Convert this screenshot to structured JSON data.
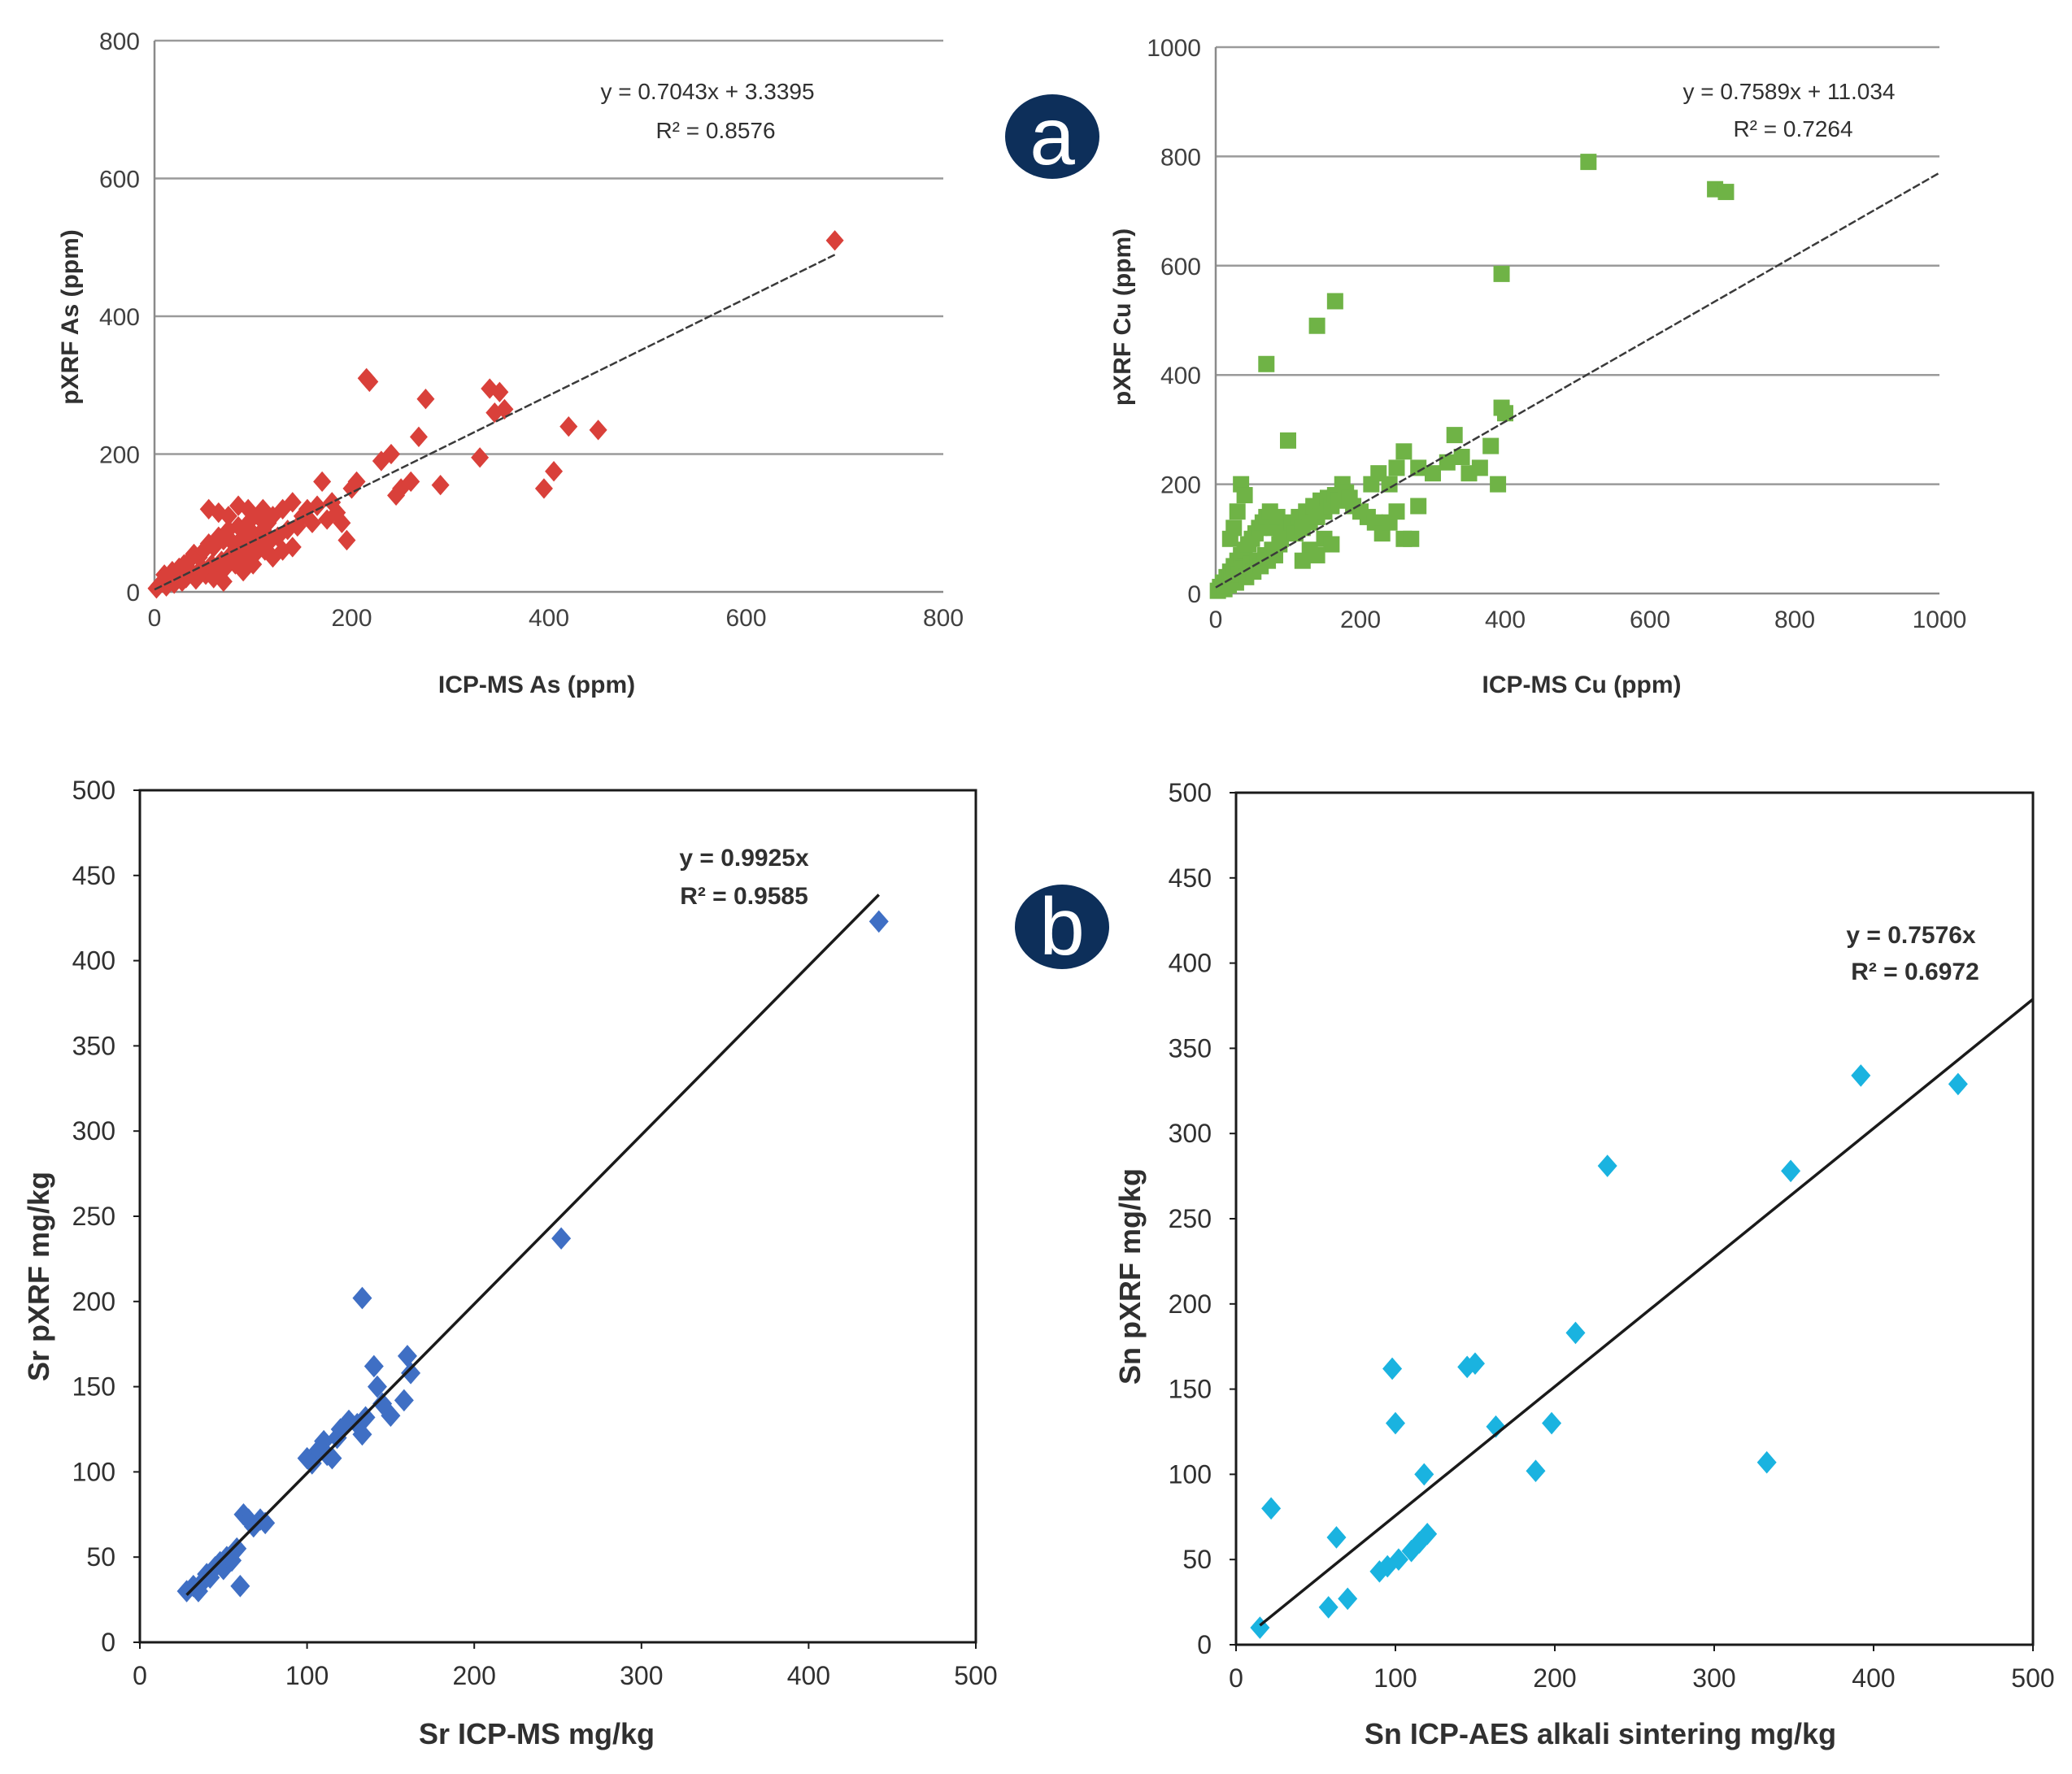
{
  "figure": {
    "badges": {
      "a": "a",
      "b": "b"
    },
    "badge_color": "#0d2f5a"
  },
  "chart_data": [
    {
      "id": "as",
      "type": "scatter",
      "title": "",
      "xlabel": "ICP-MS As (ppm)",
      "ylabel": "pXRF As (ppm)",
      "xlim": [
        0,
        800
      ],
      "ylim": [
        0,
        800
      ],
      "xticks": [
        "0",
        "200",
        "400",
        "600",
        "800"
      ],
      "yticks": [
        "0",
        "200",
        "400",
        "600",
        "800"
      ],
      "grid": true,
      "marker": "diamond",
      "color": "#d9403a",
      "equation": "y = 0.7043x + 3.3395",
      "r2": "R² = 0.8576",
      "fit": {
        "slope": 0.7043,
        "intercept": 3.3395,
        "x0": 0,
        "x1": 690
      },
      "points": [
        [
          2,
          5
        ],
        [
          5,
          10
        ],
        [
          8,
          14
        ],
        [
          10,
          25
        ],
        [
          12,
          8
        ],
        [
          15,
          18
        ],
        [
          18,
          30
        ],
        [
          20,
          12
        ],
        [
          22,
          22
        ],
        [
          25,
          35
        ],
        [
          28,
          15
        ],
        [
          30,
          40
        ],
        [
          32,
          20
        ],
        [
          35,
          45
        ],
        [
          38,
          28
        ],
        [
          40,
          55
        ],
        [
          42,
          18
        ],
        [
          45,
          50
        ],
        [
          48,
          35
        ],
        [
          50,
          60
        ],
        [
          52,
          25
        ],
        [
          55,
          70
        ],
        [
          58,
          40
        ],
        [
          60,
          65
        ],
        [
          62,
          30
        ],
        [
          65,
          80
        ],
        [
          68,
          45
        ],
        [
          70,
          75
        ],
        [
          72,
          35
        ],
        [
          75,
          90
        ],
        [
          78,
          55
        ],
        [
          80,
          70
        ],
        [
          82,
          40
        ],
        [
          85,
          95
        ],
        [
          88,
          60
        ],
        [
          90,
          80
        ],
        [
          92,
          50
        ],
        [
          95,
          100
        ],
        [
          98,
          65
        ],
        [
          100,
          85
        ],
        [
          102,
          55
        ],
        [
          105,
          110
        ],
        [
          108,
          70
        ],
        [
          110,
          90
        ],
        [
          112,
          60
        ],
        [
          115,
          100
        ],
        [
          118,
          75
        ],
        [
          120,
          110
        ],
        [
          125,
          80
        ],
        [
          130,
          120
        ],
        [
          135,
          90
        ],
        [
          140,
          130
        ],
        [
          145,
          95
        ],
        [
          150,
          110
        ],
        [
          155,
          120
        ],
        [
          160,
          100
        ],
        [
          165,
          125
        ],
        [
          170,
          160
        ],
        [
          175,
          105
        ],
        [
          180,
          130
        ],
        [
          185,
          115
        ],
        [
          190,
          100
        ],
        [
          195,
          75
        ],
        [
          200,
          150
        ],
        [
          205,
          160
        ],
        [
          55,
          120
        ],
        [
          65,
          115
        ],
        [
          75,
          110
        ],
        [
          85,
          125
        ],
        [
          95,
          120
        ],
        [
          110,
          120
        ],
        [
          60,
          20
        ],
        [
          70,
          15
        ],
        [
          90,
          30
        ],
        [
          100,
          40
        ],
        [
          120,
          50
        ],
        [
          130,
          60
        ],
        [
          140,
          65
        ],
        [
          215,
          310
        ],
        [
          218,
          305
        ],
        [
          230,
          190
        ],
        [
          240,
          200
        ],
        [
          245,
          140
        ],
        [
          250,
          150
        ],
        [
          260,
          160
        ],
        [
          268,
          225
        ],
        [
          275,
          280
        ],
        [
          290,
          155
        ],
        [
          330,
          195
        ],
        [
          340,
          295
        ],
        [
          345,
          260
        ],
        [
          350,
          290
        ],
        [
          355,
          265
        ],
        [
          395,
          150
        ],
        [
          405,
          175
        ],
        [
          420,
          240
        ],
        [
          450,
          235
        ],
        [
          690,
          510
        ]
      ]
    },
    {
      "id": "cu",
      "type": "scatter",
      "title": "",
      "xlabel": "ICP-MS Cu (ppm)",
      "ylabel": "pXRF Cu (ppm)",
      "xlim": [
        0,
        1000
      ],
      "ylim": [
        0,
        1000
      ],
      "xticks": [
        "0",
        "200",
        "400",
        "600",
        "800",
        "1000"
      ],
      "yticks": [
        "0",
        "200",
        "400",
        "600",
        "800",
        "1000"
      ],
      "grid": true,
      "marker": "square",
      "color": "#6fb346",
      "equation": "y = 0.7589x + 11.034",
      "r2": "R² = 0.7264",
      "fit": {
        "slope": 0.7589,
        "intercept": 11.034,
        "x0": 0,
        "x1": 1000
      },
      "points": [
        [
          3,
          5
        ],
        [
          6,
          12
        ],
        [
          10,
          20
        ],
        [
          12,
          8
        ],
        [
          15,
          30
        ],
        [
          18,
          15
        ],
        [
          20,
          40
        ],
        [
          22,
          25
        ],
        [
          25,
          50
        ],
        [
          28,
          20
        ],
        [
          30,
          60
        ],
        [
          32,
          35
        ],
        [
          35,
          70
        ],
        [
          38,
          45
        ],
        [
          40,
          80
        ],
        [
          42,
          30
        ],
        [
          45,
          90
        ],
        [
          48,
          55
        ],
        [
          50,
          100
        ],
        [
          52,
          40
        ],
        [
          55,
          110
        ],
        [
          58,
          60
        ],
        [
          60,
          120
        ],
        [
          62,
          50
        ],
        [
          65,
          130
        ],
        [
          68,
          70
        ],
        [
          70,
          140
        ],
        [
          72,
          60
        ],
        [
          75,
          150
        ],
        [
          78,
          80
        ],
        [
          80,
          120
        ],
        [
          82,
          70
        ],
        [
          85,
          140
        ],
        [
          88,
          90
        ],
        [
          90,
          100
        ],
        [
          95,
          110
        ],
        [
          100,
          120
        ],
        [
          105,
          130
        ],
        [
          110,
          110
        ],
        [
          115,
          140
        ],
        [
          120,
          120
        ],
        [
          125,
          150
        ],
        [
          130,
          130
        ],
        [
          135,
          160
        ],
        [
          140,
          140
        ],
        [
          145,
          170
        ],
        [
          150,
          150
        ],
        [
          155,
          175
        ],
        [
          160,
          160
        ],
        [
          165,
          180
        ],
        [
          170,
          170
        ],
        [
          175,
          200
        ],
        [
          180,
          185
        ],
        [
          185,
          175
        ],
        [
          190,
          160
        ],
        [
          200,
          150
        ],
        [
          210,
          140
        ],
        [
          220,
          130
        ],
        [
          230,
          110
        ],
        [
          240,
          130
        ],
        [
          250,
          150
        ],
        [
          260,
          100
        ],
        [
          270,
          100
        ],
        [
          280,
          160
        ],
        [
          150,
          100
        ],
        [
          160,
          90
        ],
        [
          130,
          80
        ],
        [
          120,
          60
        ],
        [
          140,
          70
        ],
        [
          20,
          100
        ],
        [
          25,
          120
        ],
        [
          30,
          150
        ],
        [
          35,
          200
        ],
        [
          40,
          180
        ],
        [
          70,
          420
        ],
        [
          100,
          280
        ],
        [
          140,
          490
        ],
        [
          165,
          535
        ],
        [
          215,
          200
        ],
        [
          225,
          220
        ],
        [
          240,
          200
        ],
        [
          250,
          230
        ],
        [
          260,
          260
        ],
        [
          280,
          230
        ],
        [
          300,
          220
        ],
        [
          320,
          240
        ],
        [
          330,
          290
        ],
        [
          340,
          250
        ],
        [
          350,
          220
        ],
        [
          365,
          230
        ],
        [
          380,
          270
        ],
        [
          390,
          200
        ],
        [
          395,
          340
        ],
        [
          400,
          330
        ],
        [
          395,
          585
        ],
        [
          515,
          790
        ],
        [
          690,
          740
        ],
        [
          705,
          735
        ]
      ]
    },
    {
      "id": "sr",
      "type": "scatter",
      "title": "",
      "xlabel": "Sr ICP-MS mg/kg",
      "ylabel": "Sr pXRF mg/kg",
      "xlim": [
        0,
        500
      ],
      "ylim": [
        0,
        500
      ],
      "xticks": [
        "0",
        "100",
        "200",
        "300",
        "400",
        "500"
      ],
      "yticks": [
        "0",
        "50",
        "100",
        "150",
        "200",
        "250",
        "300",
        "350",
        "400",
        "450",
        "500"
      ],
      "grid": false,
      "marker": "diamond",
      "color": "#3f6fc4",
      "equation": "y = 0.9925x",
      "r2": "R² = 0.9585",
      "fit": {
        "slope": 0.9925,
        "intercept": 0,
        "x0": 28,
        "x1": 442
      },
      "points": [
        [
          28,
          30
        ],
        [
          32,
          33
        ],
        [
          35,
          30
        ],
        [
          38,
          36
        ],
        [
          40,
          40
        ],
        [
          42,
          38
        ],
        [
          45,
          44
        ],
        [
          48,
          47
        ],
        [
          50,
          43
        ],
        [
          52,
          50
        ],
        [
          55,
          48
        ],
        [
          58,
          55
        ],
        [
          60,
          33
        ],
        [
          62,
          75
        ],
        [
          65,
          72
        ],
        [
          68,
          68
        ],
        [
          72,
          72
        ],
        [
          75,
          70
        ],
        [
          100,
          108
        ],
        [
          103,
          105
        ],
        [
          107,
          113
        ],
        [
          110,
          118
        ],
        [
          112,
          110
        ],
        [
          115,
          108
        ],
        [
          118,
          120
        ],
        [
          120,
          125
        ],
        [
          125,
          130
        ],
        [
          130,
          128
        ],
        [
          133,
          122
        ],
        [
          135,
          132
        ],
        [
          140,
          162
        ],
        [
          142,
          150
        ],
        [
          145,
          140
        ],
        [
          150,
          133
        ],
        [
          158,
          142
        ],
        [
          160,
          168
        ],
        [
          162,
          158
        ],
        [
          133,
          202
        ],
        [
          252,
          237
        ],
        [
          442,
          423
        ]
      ]
    },
    {
      "id": "sn",
      "type": "scatter",
      "title": "",
      "xlabel": "Sn ICP-AES alkali sintering mg/kg",
      "ylabel": "Sn pXRF mg/kg",
      "xlim": [
        0,
        500
      ],
      "ylim": [
        0,
        500
      ],
      "xticks": [
        "0",
        "100",
        "200",
        "300",
        "400",
        "500"
      ],
      "yticks": [
        "0",
        "50",
        "100",
        "150",
        "200",
        "250",
        "300",
        "350",
        "400",
        "450",
        "500"
      ],
      "grid": false,
      "marker": "diamond",
      "color": "#1ab3e0",
      "equation": "y = 0.7576x",
      "r2": "R² = 0.6972",
      "fit": {
        "slope": 0.7576,
        "intercept": 0,
        "x0": 15,
        "x1": 500
      },
      "points": [
        [
          15,
          10
        ],
        [
          22,
          80
        ],
        [
          58,
          22
        ],
        [
          63,
          63
        ],
        [
          70,
          27
        ],
        [
          90,
          43
        ],
        [
          95,
          46
        ],
        [
          98,
          162
        ],
        [
          100,
          130
        ],
        [
          102,
          50
        ],
        [
          110,
          55
        ],
        [
          115,
          60
        ],
        [
          118,
          100
        ],
        [
          120,
          65
        ],
        [
          145,
          163
        ],
        [
          150,
          165
        ],
        [
          163,
          128
        ],
        [
          188,
          102
        ],
        [
          198,
          130
        ],
        [
          213,
          183
        ],
        [
          233,
          281
        ],
        [
          333,
          107
        ],
        [
          348,
          278
        ],
        [
          392,
          334
        ],
        [
          453,
          329
        ]
      ]
    }
  ]
}
